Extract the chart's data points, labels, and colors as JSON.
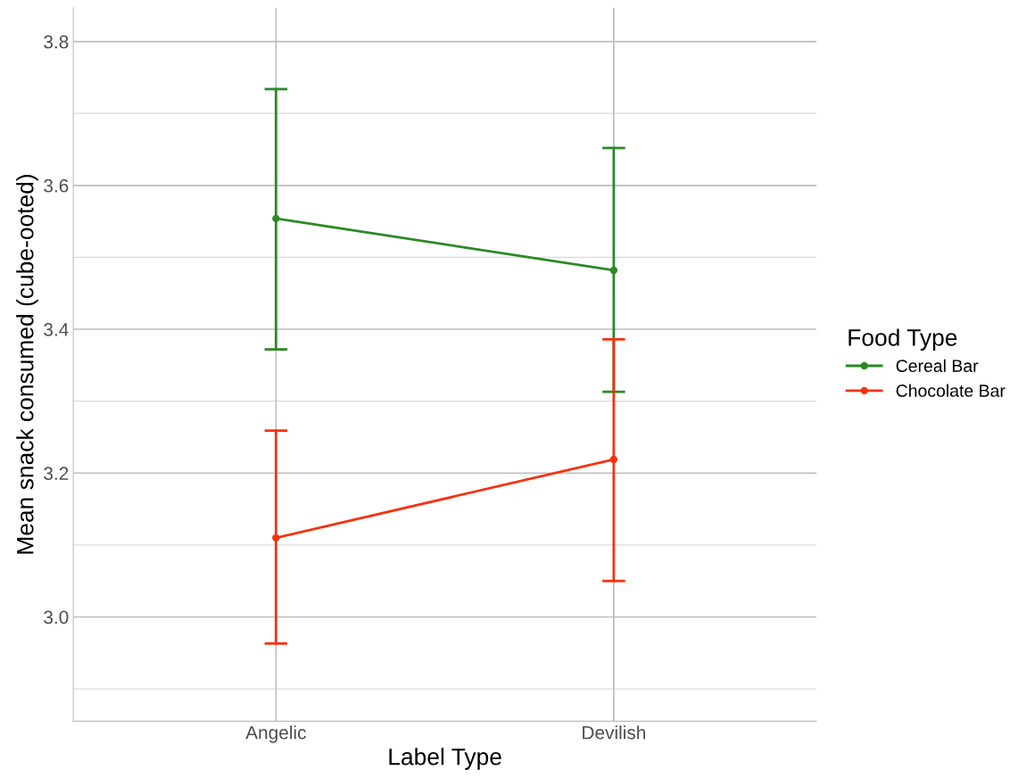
{
  "chart_data": {
    "type": "line",
    "xlabel": "Label Type",
    "ylabel": "Mean snack consumed (cube-ooted)",
    "legend_title": "Food Type",
    "categories": [
      "Angelic",
      "Devilish"
    ],
    "series": [
      {
        "name": "Cereal Bar",
        "color": "#2a8a24",
        "values": [
          3.554,
          3.482
        ],
        "errors": [
          [
            3.372,
            3.734
          ],
          [
            3.313,
            3.652
          ]
        ]
      },
      {
        "name": "Chocolate Bar",
        "color": "#f5320f",
        "values": [
          3.11,
          3.219
        ],
        "errors": [
          [
            2.963,
            3.259
          ],
          [
            3.05,
            3.386
          ]
        ]
      }
    ],
    "ylim": [
      2.855,
      3.847
    ],
    "yticks": [
      {
        "value": 2.9,
        "label": null
      },
      {
        "value": 3.0,
        "label": "3.0"
      },
      {
        "value": 3.1,
        "label": null
      },
      3.2,
      {
        "value": 3.3,
        "label": null
      },
      3.4,
      {
        "value": 3.5,
        "label": null
      },
      3.6,
      {
        "value": 3.7,
        "label": null
      },
      3.8
    ],
    "grid": true,
    "legend": "right",
    "marker": "circle",
    "line_style": "solid"
  }
}
